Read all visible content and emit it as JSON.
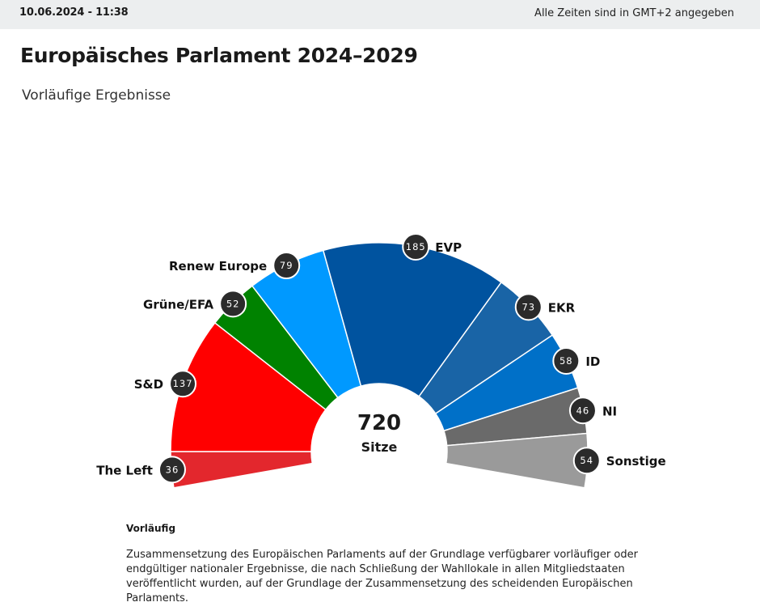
{
  "header": {
    "timestamp": "10.06.2024 - 11:38",
    "timezone_note": "Alle Zeiten sind in GMT+2 angegeben"
  },
  "page": {
    "title": "Europäisches Parlament 2024–2029",
    "subtitle": "Vorläufige Ergebnisse"
  },
  "chart_data": {
    "type": "pie",
    "shape": "parliament-hemicycle",
    "total_value": "720",
    "total_label": "Sitze",
    "series": [
      {
        "name": "The Left",
        "value": 36,
        "color": "#e3272d"
      },
      {
        "name": "S&D",
        "value": 137,
        "color": "#ff0000"
      },
      {
        "name": "Grüne/EFA",
        "value": 52,
        "color": "#008200"
      },
      {
        "name": "Renew Europe",
        "value": 79,
        "color": "#0099ff"
      },
      {
        "name": "EVP",
        "value": 185,
        "color": "#00539f"
      },
      {
        "name": "EKR",
        "value": 73,
        "color": "#1964a6"
      },
      {
        "name": "ID",
        "value": 58,
        "color": "#0070c8"
      },
      {
        "name": "NI",
        "value": 46,
        "color": "#6a6a6a"
      },
      {
        "name": "Sonstige",
        "value": 54,
        "color": "#9a9a9a"
      }
    ]
  },
  "footnote": {
    "title": "Vorläufig",
    "text": "Zusammensetzung des Europäischen Parlaments auf der Grundlage verfügbarer vorläufiger oder endgültiger nationaler Ergebnisse, die nach Schließung der Wahllokale in allen Mitgliedstaaten veröffentlicht wurden, auf der Grundlage der Zusammensetzung des scheidenden Europäischen Parlaments."
  }
}
